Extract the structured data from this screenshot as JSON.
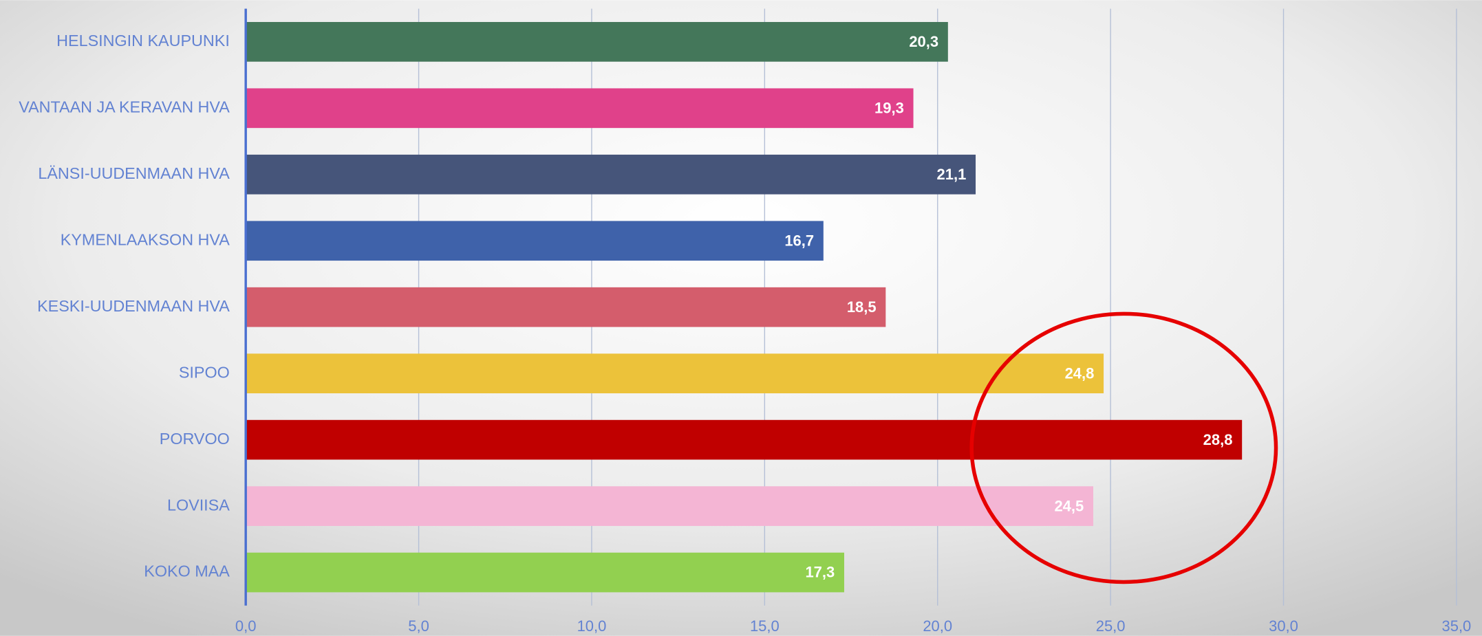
{
  "chart_data": {
    "type": "bar",
    "orientation": "horizontal",
    "categories": [
      "HELSINGIN KAUPUNKI",
      "VANTAAN JA KERAVAN HVA",
      "LÄNSI-UUDENMAAN HVA",
      "KYMENLAAKSON HVA",
      "KESKI-UUDENMAAN HVA",
      "SIPOO",
      "PORVOO",
      "LOVIISA",
      "KOKO MAA"
    ],
    "values": [
      20.3,
      19.3,
      21.1,
      16.7,
      18.5,
      24.8,
      28.8,
      24.5,
      17.3
    ],
    "value_labels": [
      "20,3",
      "19,3",
      "21,1",
      "16,7",
      "18,5",
      "24,8",
      "28,8",
      "24,5",
      "17,3"
    ],
    "colors": [
      "#44775a",
      "#e0418a",
      "#46557a",
      "#3f62aa",
      "#d45d6c",
      "#ecc23a",
      "#c00000",
      "#f4b5d4",
      "#92d050"
    ],
    "xlim": [
      0,
      35
    ],
    "xticks": [
      {
        "value": 0,
        "label": "0,0"
      },
      {
        "value": 5,
        "label": "5,0"
      },
      {
        "value": 10,
        "label": "10,0"
      },
      {
        "value": 15,
        "label": "15,0"
      },
      {
        "value": 20,
        "label": "20,0"
      },
      {
        "value": 25,
        "label": "25,0"
      },
      {
        "value": 30,
        "label": "30,0"
      },
      {
        "value": 35,
        "label": "35,0"
      }
    ],
    "grid": true
  }
}
